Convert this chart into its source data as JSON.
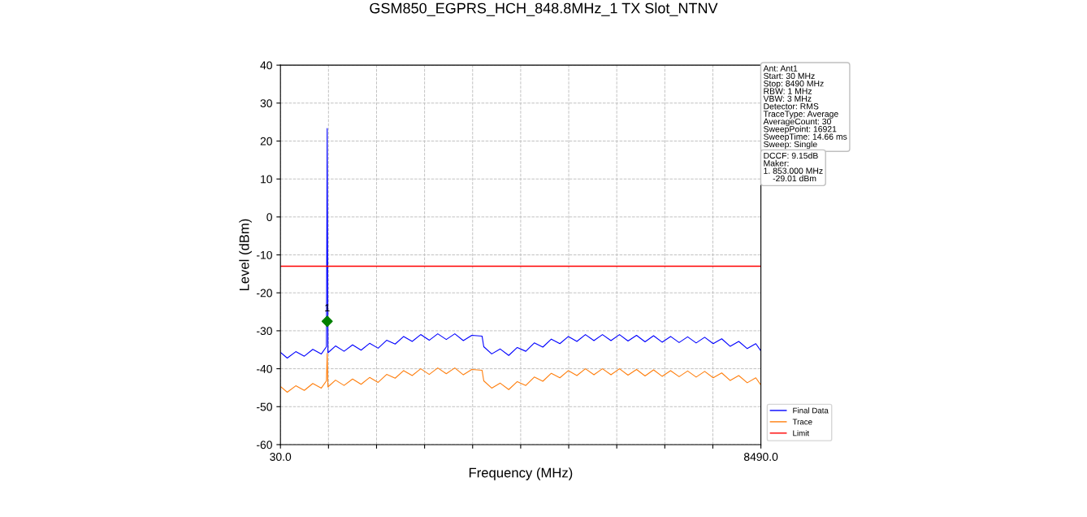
{
  "chart_data": {
    "type": "line",
    "title": "GSM850_EGPRS_HCH_848.8MHz_1 TX Slot_NTNV",
    "xlabel": "Frequency (MHz)",
    "ylabel": "Level (dBm)",
    "xlim": [
      30.0,
      8490.0
    ],
    "ylim": [
      -60,
      40
    ],
    "xticks": [
      {
        "value": 30.0,
        "label": "30.0"
      },
      {
        "value": 876,
        "label": null
      },
      {
        "value": 1722,
        "label": null
      },
      {
        "value": 2568,
        "label": null
      },
      {
        "value": 3414,
        "label": null
      },
      {
        "value": 4260,
        "label": null
      },
      {
        "value": 5106,
        "label": null
      },
      {
        "value": 5952,
        "label": null
      },
      {
        "value": 6798,
        "label": null
      },
      {
        "value": 7644,
        "label": null
      },
      {
        "value": 8490.0,
        "label": "8490.0"
      }
    ],
    "yticks": [
      -60,
      -50,
      -40,
      -30,
      -20,
      -10,
      0,
      10,
      20,
      30,
      40
    ],
    "grid": true,
    "legend": "bottom right",
    "x": [
      30,
      150,
      300,
      450,
      600,
      750,
      840,
      853,
      866,
      1000,
      1150,
      1300,
      1450,
      1600,
      1750,
      1900,
      2050,
      2200,
      2350,
      2500,
      2650,
      2800,
      2950,
      3100,
      3250,
      3400,
      3580,
      3610,
      3750,
      3900,
      4050,
      4200,
      4350,
      4500,
      4650,
      4800,
      4950,
      5100,
      5250,
      5400,
      5550,
      5700,
      5850,
      6000,
      6150,
      6300,
      6450,
      6600,
      6750,
      6900,
      7050,
      7200,
      7350,
      7500,
      7650,
      7800,
      7950,
      8100,
      8250,
      8400,
      8490
    ],
    "series": [
      {
        "name": "Final Data",
        "color": "#0000ff",
        "values": [
          -35.7,
          -37.2,
          -35.5,
          -36.7,
          -34.9,
          -36.1,
          -34.2,
          23.3,
          -35.8,
          -34.0,
          -35.4,
          -33.7,
          -35.1,
          -33.3,
          -34.6,
          -32.5,
          -33.5,
          -31.5,
          -32.8,
          -31.0,
          -32.5,
          -30.8,
          -32.3,
          -30.8,
          -32.6,
          -31.2,
          -31.4,
          -34.2,
          -36.1,
          -34.8,
          -36.5,
          -34.4,
          -35.4,
          -33.2,
          -34.3,
          -32.2,
          -33.4,
          -31.5,
          -32.8,
          -31.0,
          -32.6,
          -31.0,
          -32.6,
          -31.0,
          -32.7,
          -31.2,
          -32.9,
          -31.3,
          -33.0,
          -31.5,
          -33.1,
          -31.6,
          -33.2,
          -31.7,
          -33.4,
          -32.1,
          -34.1,
          -32.8,
          -34.7,
          -33.4,
          -35.3
        ]
      },
      {
        "name": "Trace",
        "color": "#ff7f0e",
        "values": [
          -44.7,
          -46.2,
          -44.5,
          -45.7,
          -43.9,
          -45.1,
          -43.2,
          -36.0,
          -44.8,
          -43.0,
          -44.4,
          -42.7,
          -44.1,
          -42.3,
          -43.6,
          -41.5,
          -42.5,
          -40.5,
          -41.8,
          -40.0,
          -41.5,
          -39.8,
          -41.3,
          -39.8,
          -41.6,
          -40.2,
          -40.4,
          -43.2,
          -45.1,
          -43.8,
          -45.5,
          -43.4,
          -44.4,
          -42.2,
          -43.3,
          -41.2,
          -42.4,
          -40.5,
          -41.8,
          -40.0,
          -41.6,
          -40.0,
          -41.6,
          -40.0,
          -41.7,
          -40.2,
          -41.9,
          -40.3,
          -42.0,
          -40.5,
          -42.1,
          -40.6,
          -42.2,
          -40.7,
          -42.4,
          -41.1,
          -43.1,
          -41.8,
          -43.7,
          -42.4,
          -44.3
        ]
      },
      {
        "type": "scatter",
        "color": "#008000",
        "marker": "diamond",
        "x": [
          853
        ],
        "values": [
          -27.5
        ]
      }
    ],
    "ref_lines": [
      {
        "axis": "y",
        "value": -13,
        "label": "Limit",
        "color": "#ff0000",
        "line_style": "solid"
      }
    ],
    "annotations": [
      {
        "text": "1",
        "x": 853,
        "y": -27.5
      },
      "Ant: Ant1\nStart: 30 MHz\nStop: 8490 MHz\nRBW: 1 MHz\nVBW: 3 MHz\nDetector: RMS\nTraceType: Average\nAverageCount: 30\nSweepPoint: 16921\nSweepTime: 14.66 ms\nSweep: Single",
      "DCCF: 9.15dB\nMaker:\n1. 853.000 MHz\n    -29.01 dBm"
    ]
  }
}
